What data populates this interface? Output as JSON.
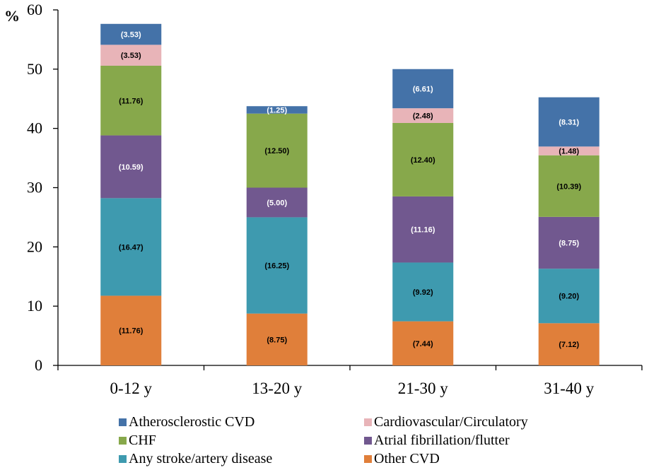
{
  "chart_data": {
    "type": "bar",
    "stacked": true,
    "title": "",
    "xlabel": "",
    "ylabel": "%",
    "ylim": [
      0,
      60
    ],
    "yticks": [
      0,
      10,
      20,
      30,
      40,
      50,
      60
    ],
    "grid": false,
    "categories": [
      "0-12 y",
      "13-20 y",
      "21-30 y",
      "31-40 y"
    ],
    "series": [
      {
        "name": "Other CVD",
        "color": "#E07F3A",
        "label_color": "#000000",
        "values": [
          11.76,
          8.75,
          7.44,
          7.12
        ],
        "labels": [
          "(11.76)",
          "(8.75)",
          "(7.44)",
          "(7.12)"
        ]
      },
      {
        "name": "Any stroke/artery disease",
        "color": "#3E9AAF",
        "label_color": "#000000",
        "values": [
          16.47,
          16.25,
          9.92,
          9.2
        ],
        "labels": [
          "(16.47)",
          "(16.25)",
          "(9.92)",
          "(9.20)"
        ]
      },
      {
        "name": "Atrial fibrillation/flutter",
        "color": "#71588F",
        "label_color": "#ffffff",
        "values": [
          10.59,
          5.0,
          11.16,
          8.75
        ],
        "labels": [
          "(10.59)",
          "(5.00)",
          "(11.16)",
          "(8.75)"
        ]
      },
      {
        "name": "CHF",
        "color": "#87A84B",
        "label_color": "#000000",
        "values": [
          11.76,
          12.5,
          12.4,
          10.39
        ],
        "labels": [
          "(11.76)",
          "(12.50)",
          "(12.40)",
          "(10.39)"
        ]
      },
      {
        "name": "Cardiovascular/Circulatory",
        "color": "#E8B4B8",
        "label_color": "#000000",
        "values": [
          3.53,
          0,
          2.48,
          1.48
        ],
        "labels": [
          "(3.53)",
          "",
          "(2.48)",
          "(1.48)"
        ]
      },
      {
        "name": "Atherosclerostic CVD",
        "color": "#4472A8",
        "label_color": "#ffffff",
        "values": [
          3.53,
          1.25,
          6.61,
          8.31
        ],
        "labels": [
          "(3.53)",
          "(1.25)",
          "(6.61)",
          "(8.31)"
        ]
      }
    ],
    "legend": {
      "placement": "bottom",
      "items": [
        {
          "name": "Atherosclerostic CVD",
          "color": "#4472A8"
        },
        {
          "name": "Cardiovascular/Circulatory",
          "color": "#E8B4B8"
        },
        {
          "name": "CHF",
          "color": "#87A84B"
        },
        {
          "name": "Atrial fibrillation/flutter",
          "color": "#71588F"
        },
        {
          "name": "Any stroke/artery disease",
          "color": "#3E9AAF"
        },
        {
          "name": "Other CVD",
          "color": "#E07F3A"
        }
      ]
    }
  }
}
